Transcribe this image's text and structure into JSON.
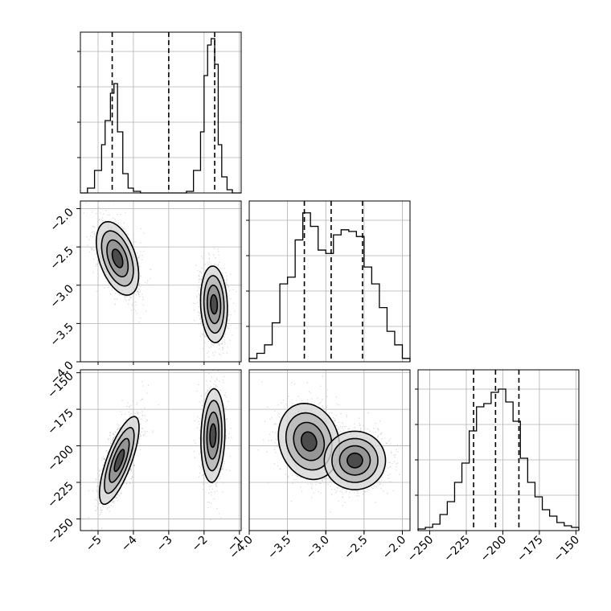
{
  "chart_data": {
    "type": "corner",
    "grid": true,
    "parameters": [
      {
        "id": "p0",
        "range": [
          -5.5,
          -0.95
        ],
        "ticks": [
          -5,
          -4,
          -3,
          -2,
          -1
        ],
        "tick_labels": [
          "−5",
          "−4",
          "−3",
          "−2",
          "−1"
        ],
        "quantiles": [
          -4.6,
          -3.0,
          -1.7
        ],
        "hist_x": [
          -5.5,
          -5.3,
          -5.1,
          -4.9,
          -4.8,
          -4.65,
          -4.55,
          -4.45,
          -4.3,
          -4.15,
          -4.0,
          -3.8,
          -3.6,
          -2.5,
          -2.3,
          -2.1,
          -2.0,
          -1.9,
          -1.8,
          -1.7,
          -1.6,
          -1.5,
          -1.35,
          -1.2,
          -0.95
        ],
        "hist_y": [
          0,
          0.03,
          0.14,
          0.3,
          0.45,
          0.62,
          0.68,
          0.38,
          0.12,
          0.03,
          0.01,
          0,
          0,
          0.01,
          0.14,
          0.38,
          0.73,
          0.92,
          0.96,
          0.8,
          0.3,
          0.1,
          0.02,
          0,
          0
        ],
        "hist_ylim": [
          0,
          1.0
        ]
      },
      {
        "id": "p1",
        "range": [
          -4.0,
          -1.9
        ],
        "ticks": [
          -4.0,
          -3.5,
          -3.0,
          -2.5,
          -2.0
        ],
        "tick_labels": [
          "−4.0",
          "−3.5",
          "−3.0",
          "−2.5",
          "−2.0"
        ],
        "quantiles": [
          -3.28,
          -2.93,
          -2.52
        ],
        "hist_x": [
          -4.0,
          -3.9,
          -3.8,
          -3.7,
          -3.6,
          -3.5,
          -3.4,
          -3.3,
          -3.2,
          -3.1,
          -3.0,
          -2.9,
          -2.8,
          -2.7,
          -2.6,
          -2.5,
          -2.4,
          -2.3,
          -2.2,
          -2.1,
          -2.0,
          -1.9
        ],
        "hist_y": [
          0.02,
          0.05,
          0.1,
          0.23,
          0.46,
          0.5,
          0.72,
          0.88,
          0.8,
          0.66,
          0.64,
          0.75,
          0.78,
          0.77,
          0.74,
          0.56,
          0.46,
          0.32,
          0.18,
          0.1,
          0.02
        ],
        "hist_ylim": [
          0,
          0.95
        ]
      },
      {
        "id": "p2",
        "range": [
          -258,
          -148
        ],
        "ticks": [
          -250,
          -225,
          -200,
          -175,
          -150
        ],
        "tick_labels": [
          "−250",
          "−225",
          "−200",
          "−175",
          "−150"
        ],
        "quantiles": [
          -220,
          -205,
          -189
        ],
        "hist_x": [
          -258,
          -253,
          -248,
          -243,
          -238,
          -233,
          -228,
          -223,
          -218,
          -213,
          -208,
          -203,
          -198,
          -193,
          -188,
          -183,
          -178,
          -173,
          -168,
          -163,
          -158,
          -153,
          -148
        ],
        "hist_y": [
          0.01,
          0.02,
          0.04,
          0.1,
          0.18,
          0.3,
          0.42,
          0.62,
          0.77,
          0.79,
          0.86,
          0.88,
          0.8,
          0.68,
          0.45,
          0.3,
          0.21,
          0.13,
          0.09,
          0.05,
          0.03,
          0.02
        ],
        "hist_ylim": [
          0,
          1.0
        ]
      }
    ],
    "pairs": [
      {
        "x_param": 0,
        "y_param": 1,
        "clusters": [
          {
            "cx": -4.45,
            "cy": -2.65,
            "sx": 0.3,
            "sy": 0.24,
            "rho": -0.45
          },
          {
            "cx": -1.72,
            "cy": -3.25,
            "sx": 0.19,
            "sy": 0.25,
            "rho": -0.1
          }
        ]
      },
      {
        "x_param": 0,
        "y_param": 2,
        "clusters": [
          {
            "cx": -4.4,
            "cy": -210,
            "sx": 0.28,
            "sy": 15,
            "rho": 0.75
          },
          {
            "cx": -1.75,
            "cy": -193,
            "sx": 0.17,
            "sy": 16,
            "rho": 0.1
          }
        ]
      },
      {
        "x_param": 1,
        "y_param": 2,
        "clusters": [
          {
            "cx": -3.22,
            "cy": -197,
            "sx": 0.2,
            "sy": 13,
            "rho": -0.15
          },
          {
            "cx": -2.62,
            "cy": -210,
            "sx": 0.2,
            "sy": 10,
            "rho": 0.0
          }
        ]
      }
    ]
  }
}
